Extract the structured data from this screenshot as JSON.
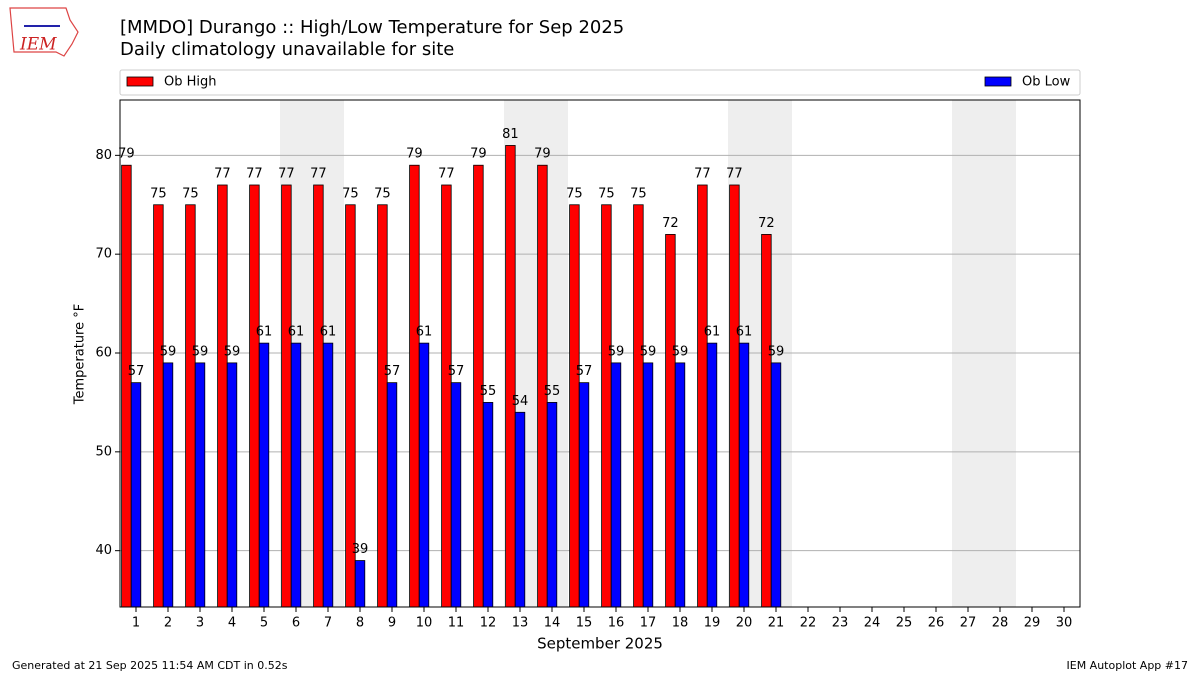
{
  "logo_text": "IEM",
  "footer_left": "Generated at 21 Sep 2025 11:54 AM CDT in 0.52s",
  "footer_right": "IEM Autoplot App #17",
  "chart_data": {
    "type": "bar",
    "title": "[MMDO] Durango :: High/Low Temperature for Sep 2025",
    "subtitle": "Daily climatology unavailable for site",
    "x_label": "September 2025",
    "y_label": "Temperature °F",
    "categories": [
      1,
      2,
      3,
      4,
      5,
      6,
      7,
      8,
      9,
      10,
      11,
      12,
      13,
      14,
      15,
      16,
      17,
      18,
      19,
      20,
      21,
      22,
      23,
      24,
      25,
      26,
      27,
      28,
      29,
      30
    ],
    "shaded": [
      6,
      7,
      13,
      14,
      20,
      21,
      27,
      28
    ],
    "series": [
      {
        "name": "Ob High",
        "color": "#ff0000",
        "values": [
          79,
          75,
          75,
          77,
          77,
          77,
          77,
          75,
          75,
          79,
          77,
          79,
          81,
          79,
          75,
          75,
          75,
          72,
          77,
          77,
          72,
          null,
          null,
          null,
          null,
          null,
          null,
          null,
          null,
          null
        ]
      },
      {
        "name": "Ob Low",
        "color": "#0000ff",
        "values": [
          57,
          59,
          59,
          59,
          61,
          61,
          61,
          39,
          57,
          61,
          57,
          55,
          54,
          55,
          57,
          59,
          59,
          59,
          61,
          61,
          59,
          null,
          null,
          null,
          null,
          null,
          null,
          null,
          null,
          null
        ]
      }
    ],
    "ylim": [
      34.3,
      85.6
    ],
    "yticks": [
      40,
      50,
      60,
      70,
      80
    ],
    "grid": true
  }
}
